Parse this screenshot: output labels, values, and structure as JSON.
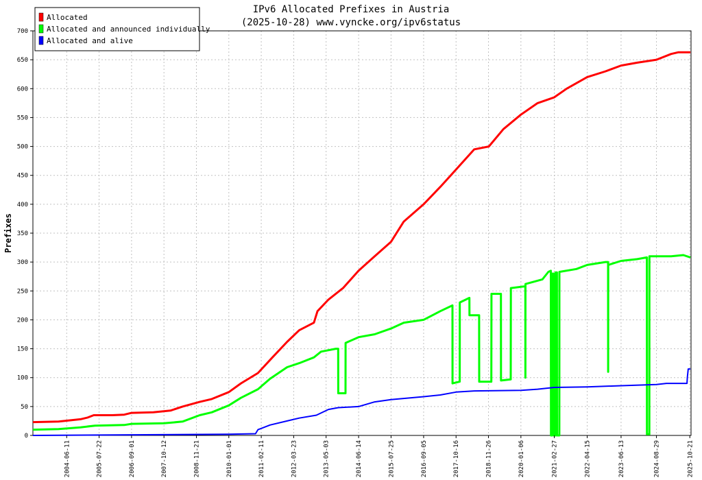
{
  "chart_data": {
    "type": "line",
    "title": "IPv6 Allocated Prefixes in Austria",
    "subtitle": "(2025-10-28) www.vyncke.org/ipv6status",
    "xlabel": "",
    "ylabel": "Prefixes",
    "ylim": [
      0,
      700
    ],
    "xlim": [
      "2003-04-15",
      "2025-11-05"
    ],
    "yticks": [
      0,
      50,
      100,
      150,
      200,
      250,
      300,
      350,
      400,
      450,
      500,
      550,
      600,
      650,
      700
    ],
    "xticks": [
      "2004-06-11",
      "2005-07-22",
      "2006-09-01",
      "2007-10-12",
      "2008-11-21",
      "2010-01-01",
      "2011-02-11",
      "2012-03-23",
      "2013-05-03",
      "2014-06-14",
      "2015-07-25",
      "2016-09-05",
      "2017-10-16",
      "2018-11-26",
      "2020-01-06",
      "2021-02-27",
      "2022-04-15",
      "2023-06-13",
      "2024-08-29",
      "2025-10-21"
    ],
    "grid": true,
    "legend_position": "top-left",
    "series": [
      {
        "name": "Allocated",
        "color": "#ff0000",
        "points": [
          [
            "2003-04-15",
            23
          ],
          [
            "2004-03-01",
            24
          ],
          [
            "2004-12-01",
            28
          ],
          [
            "2005-03-01",
            31
          ],
          [
            "2005-05-15",
            35
          ],
          [
            "2006-01-01",
            35
          ],
          [
            "2006-06-01",
            36
          ],
          [
            "2006-09-01",
            39
          ],
          [
            "2007-06-01",
            40
          ],
          [
            "2008-01-01",
            43
          ],
          [
            "2008-06-01",
            50
          ],
          [
            "2009-01-01",
            58
          ],
          [
            "2009-06-01",
            63
          ],
          [
            "2010-01-01",
            75
          ],
          [
            "2010-06-01",
            90
          ],
          [
            "2011-01-01",
            108
          ],
          [
            "2011-07-01",
            135
          ],
          [
            "2012-01-01",
            162
          ],
          [
            "2012-06-01",
            182
          ],
          [
            "2012-12-01",
            195
          ],
          [
            "2013-01-15",
            215
          ],
          [
            "2013-06-01",
            235
          ],
          [
            "2013-12-01",
            255
          ],
          [
            "2014-06-14",
            285
          ],
          [
            "2015-01-01",
            310
          ],
          [
            "2015-07-25",
            335
          ],
          [
            "2016-01-01",
            370
          ],
          [
            "2016-09-05",
            400
          ],
          [
            "2017-04-01",
            430
          ],
          [
            "2017-10-16",
            460
          ],
          [
            "2018-06-01",
            495
          ],
          [
            "2018-12-01",
            500
          ],
          [
            "2019-06-01",
            530
          ],
          [
            "2020-01-06",
            555
          ],
          [
            "2020-08-01",
            575
          ],
          [
            "2021-02-27",
            585
          ],
          [
            "2021-08-01",
            600
          ],
          [
            "2022-04-15",
            620
          ],
          [
            "2022-12-01",
            630
          ],
          [
            "2023-06-13",
            640
          ],
          [
            "2024-01-01",
            645
          ],
          [
            "2024-08-29",
            650
          ],
          [
            "2025-03-01",
            660
          ],
          [
            "2025-06-01",
            663
          ],
          [
            "2025-10-28",
            663
          ]
        ]
      },
      {
        "name": "Allocated and announced individually",
        "color": "#00ff00",
        "points": [
          [
            "2003-04-15",
            10
          ],
          [
            "2004-03-01",
            11
          ],
          [
            "2004-12-01",
            14
          ],
          [
            "2005-06-01",
            17
          ],
          [
            "2006-06-01",
            18
          ],
          [
            "2006-09-01",
            20
          ],
          [
            "2007-10-12",
            21
          ],
          [
            "2008-06-01",
            24
          ],
          [
            "2009-01-01",
            35
          ],
          [
            "2009-06-01",
            40
          ],
          [
            "2010-01-01",
            52
          ],
          [
            "2010-06-01",
            65
          ],
          [
            "2011-01-01",
            80
          ],
          [
            "2011-06-01",
            98
          ],
          [
            "2012-01-01",
            118
          ],
          [
            "2012-06-01",
            125
          ],
          [
            "2012-12-01",
            135
          ],
          [
            "2013-03-01",
            145
          ],
          [
            "2013-09-01",
            150
          ],
          [
            "2013-10-01",
            150
          ],
          [
            "2013-10-02",
            73
          ],
          [
            "2014-01-01",
            73
          ],
          [
            "2014-01-02",
            160
          ],
          [
            "2014-06-14",
            170
          ],
          [
            "2015-01-01",
            175
          ],
          [
            "2015-07-25",
            185
          ],
          [
            "2016-01-01",
            195
          ],
          [
            "2016-09-05",
            200
          ],
          [
            "2017-04-01",
            215
          ],
          [
            "2017-09-01",
            225
          ],
          [
            "2017-09-02",
            90
          ],
          [
            "2017-12-01",
            93
          ],
          [
            "2017-12-02",
            230
          ],
          [
            "2018-04-01",
            238
          ],
          [
            "2018-04-02",
            208
          ],
          [
            "2018-08-01",
            208
          ],
          [
            "2018-08-02",
            93
          ],
          [
            "2019-01-01",
            93
          ],
          [
            "2019-01-02",
            245
          ],
          [
            "2019-05-01",
            245
          ],
          [
            "2019-05-02",
            95
          ],
          [
            "2019-09-01",
            97
          ],
          [
            "2019-09-02",
            255
          ],
          [
            "2020-03-01",
            258
          ],
          [
            "2020-03-02",
            100
          ],
          [
            "2020-03-03",
            262
          ],
          [
            "2020-10-01",
            270
          ],
          [
            "2020-12-15",
            283
          ],
          [
            "2021-01-15",
            285
          ],
          [
            "2021-01-16",
            0
          ],
          [
            "2021-02-01",
            0
          ],
          [
            "2021-02-02",
            280
          ],
          [
            "2021-02-20",
            280
          ],
          [
            "2021-02-21",
            0
          ],
          [
            "2021-03-15",
            0
          ],
          [
            "2021-03-16",
            282
          ],
          [
            "2021-04-01",
            282
          ],
          [
            "2021-04-02",
            0
          ],
          [
            "2021-05-01",
            0
          ],
          [
            "2021-05-02",
            283
          ],
          [
            "2021-12-01",
            288
          ],
          [
            "2022-04-15",
            295
          ],
          [
            "2022-12-01",
            300
          ],
          [
            "2023-01-01",
            300
          ],
          [
            "2023-01-02",
            110
          ],
          [
            "2023-01-03",
            295
          ],
          [
            "2023-06-13",
            302
          ],
          [
            "2024-01-01",
            305
          ],
          [
            "2024-05-01",
            308
          ],
          [
            "2024-05-02",
            2
          ],
          [
            "2024-06-01",
            2
          ],
          [
            "2024-06-02",
            310
          ],
          [
            "2025-03-01",
            310
          ],
          [
            "2025-08-01",
            312
          ],
          [
            "2025-10-28",
            308
          ]
        ]
      },
      {
        "name": "Allocated and alive",
        "color": "#0000ff",
        "points": [
          [
            "2003-04-15",
            0
          ],
          [
            "2010-01-01",
            2
          ],
          [
            "2010-12-01",
            3
          ],
          [
            "2011-01-01",
            10
          ],
          [
            "2011-06-01",
            18
          ],
          [
            "2012-01-01",
            25
          ],
          [
            "2012-06-01",
            30
          ],
          [
            "2013-01-01",
            35
          ],
          [
            "2013-06-01",
            45
          ],
          [
            "2013-10-01",
            48
          ],
          [
            "2014-06-14",
            50
          ],
          [
            "2015-01-01",
            58
          ],
          [
            "2015-07-25",
            62
          ],
          [
            "2016-09-05",
            67
          ],
          [
            "2017-04-01",
            70
          ],
          [
            "2017-10-16",
            75
          ],
          [
            "2018-06-01",
            77
          ],
          [
            "2020-01-06",
            78
          ],
          [
            "2020-08-01",
            80
          ],
          [
            "2021-02-27",
            83
          ],
          [
            "2022-04-15",
            84
          ],
          [
            "2023-06-13",
            86
          ],
          [
            "2024-08-29",
            88
          ],
          [
            "2025-01-01",
            90
          ],
          [
            "2025-09-15",
            90
          ],
          [
            "2025-09-20",
            100
          ],
          [
            "2025-10-01",
            115
          ],
          [
            "2025-10-28",
            115
          ]
        ]
      }
    ]
  }
}
